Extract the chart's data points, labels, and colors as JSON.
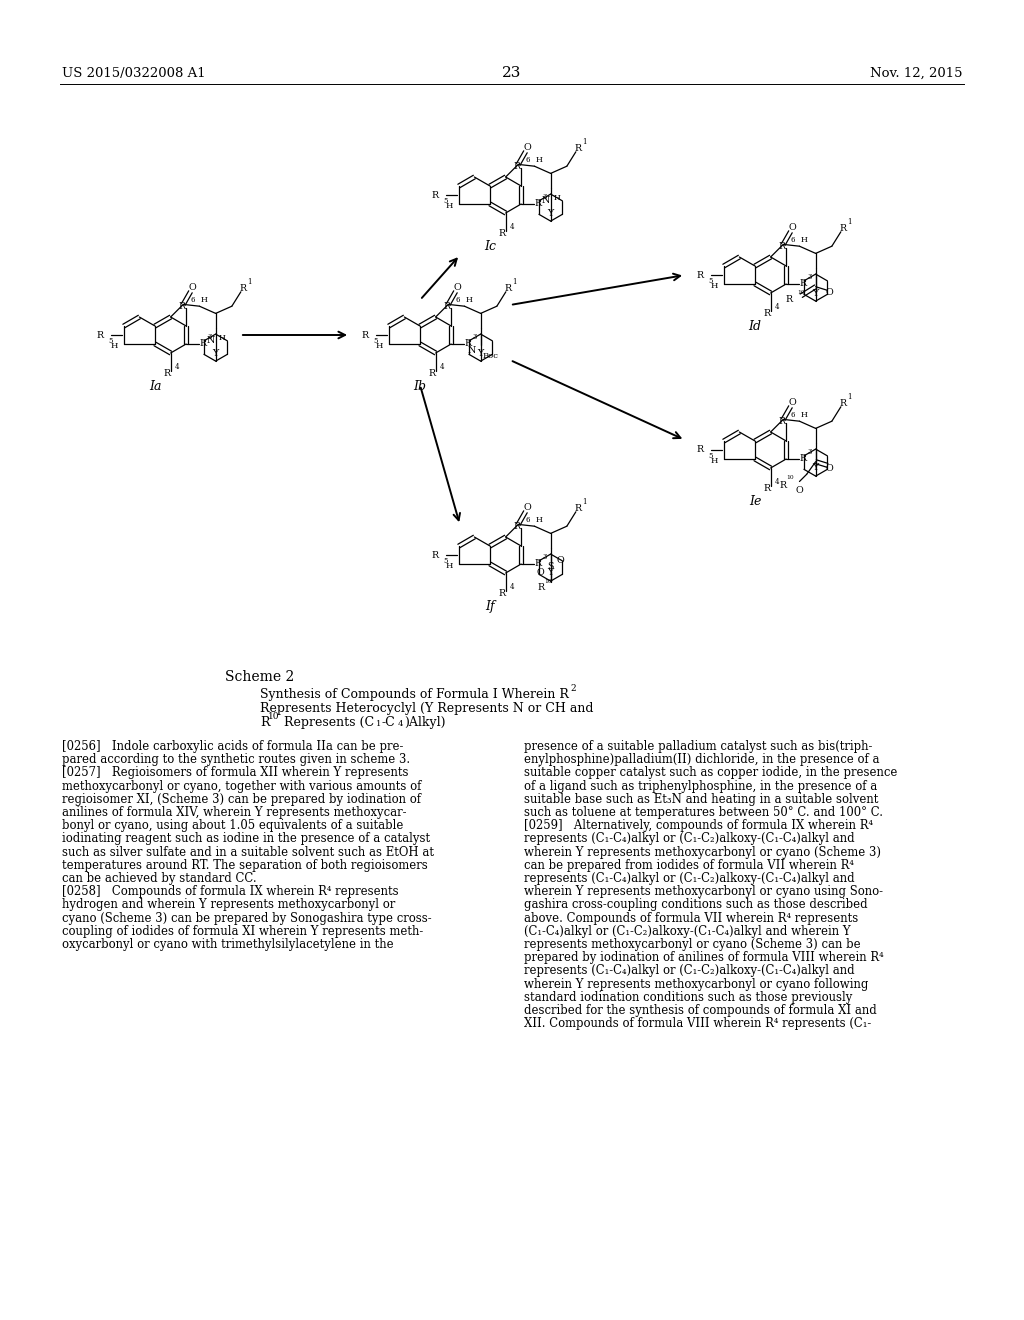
{
  "patent_number": "US 2015/0322008 A1",
  "patent_date": "Nov. 12, 2015",
  "page_number": "23",
  "background_color": "#ffffff",
  "scheme_title": "Scheme 2",
  "scheme_sub1": "Synthesis of Compounds of Formula I Wherein R",
  "scheme_sub2": "Represents Heterocyclyl (Y Represents N or CH and",
  "scheme_sub3_a": "R",
  "scheme_sub3_b": " Represents (C",
  "scheme_sub3_c": "-C",
  "scheme_sub3_d": ")Alkyl)",
  "body_left": [
    "[0256]   Indole carboxylic acids of formula IIa can be pre-",
    "pared according to the synthetic routes given in scheme 3.",
    "[0257]   Regioisomers of formula XII wherein Y represents",
    "methoxycarbonyl or cyano, together with various amounts of",
    "regioisomer XI, (Scheme 3) can be prepared by iodination of",
    "anilines of formula XIV, wherein Y represents methoxycar-",
    "bonyl or cyano, using about 1.05 equivalents of a suitable",
    "iodinating reagent such as iodine in the presence of a catalyst",
    "such as silver sulfate and in a suitable solvent such as EtOH at",
    "temperatures around RT. The separation of both regioisomers",
    "can be achieved by standard CC.",
    "[0258]   Compounds of formula IX wherein R⁴ represents",
    "hydrogen and wherein Y represents methoxycarbonyl or",
    "cyano (Scheme 3) can be prepared by Sonogashira type cross-",
    "coupling of iodides of formula XI wherein Y represents meth-",
    "oxycarbonyl or cyano with trimethylsilylacetylene in the"
  ],
  "body_right": [
    "presence of a suitable palladium catalyst such as bis(triph-",
    "enylphosphine)palladium(II) dichloride, in the presence of a",
    "suitable copper catalyst such as copper iodide, in the presence",
    "of a ligand such as triphenylphosphine, in the presence of a",
    "suitable base such as Et₃N and heating in a suitable solvent",
    "such as toluene at temperatures between 50° C. and 100° C.",
    "[0259]   Alternatively, compounds of formula IX wherein R⁴",
    "represents (C₁-C₄)alkyl or (C₁-C₂)alkoxy-(C₁-C₄)alkyl and",
    "wherein Y represents methoxycarbonyl or cyano (Scheme 3)",
    "can be prepared from iodides of formula VII wherein R⁴",
    "represents (C₁-C₄)alkyl or (C₁-C₂)alkoxy-(C₁-C₄)alkyl and",
    "wherein Y represents methoxycarbonyl or cyano using Sono-",
    "gashira cross-coupling conditions such as those described",
    "above. Compounds of formula VII wherein R⁴ represents",
    "(C₁-C₄)alkyl or (C₁-C₂)alkoxy-(C₁-C₄)alkyl and wherein Y",
    "represents methoxycarbonyl or cyano (Scheme 3) can be",
    "prepared by iodination of anilines of formula VIII wherein R⁴",
    "represents (C₁-C₄)alkyl or (C₁-C₂)alkoxy-(C₁-C₄)alkyl and",
    "wherein Y represents methoxycarbonyl or cyano following",
    "standard iodination conditions such as those previously",
    "described for the synthesis of compounds of formula XI and",
    "XII. Compounds of formula VIII wherein R⁴ represents (C₁-"
  ]
}
